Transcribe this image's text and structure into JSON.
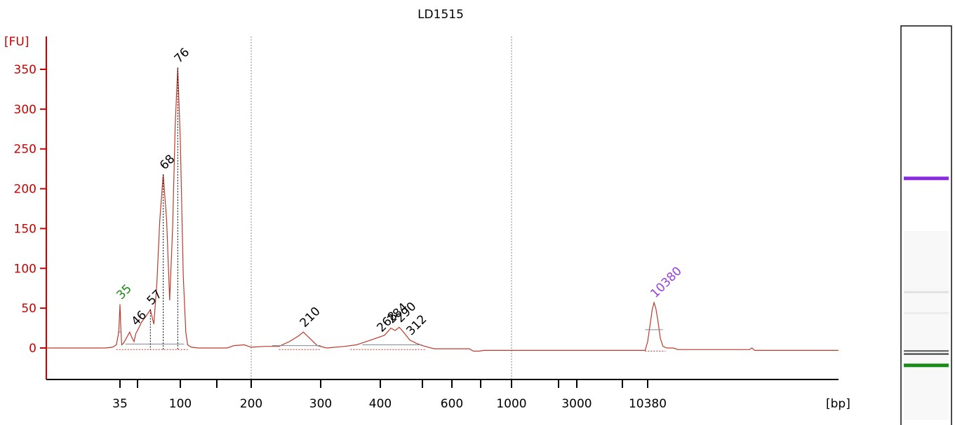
{
  "chart_data": {
    "type": "line",
    "title": "LD1515",
    "ylabel": "[FU]",
    "xlabel": "[bp]",
    "ylim": [
      -40,
      390
    ],
    "grid": "vertical dotted lines at 200 and 1000",
    "legend": "none",
    "y_ticks": [
      0,
      50,
      100,
      150,
      200,
      250,
      300,
      350
    ],
    "x_ticks": [
      {
        "label": "35",
        "xi": 3
      },
      {
        "label": "",
        "xi": 4
      },
      {
        "label": "100",
        "xi": 5
      },
      {
        "label": "",
        "xi": 6
      },
      {
        "label": "200",
        "xi": 7
      },
      {
        "label": "300",
        "xi": 8
      },
      {
        "label": "400",
        "xi": 9
      },
      {
        "label": "",
        "xi": 10
      },
      {
        "label": "600",
        "xi": 11
      },
      {
        "label": "",
        "xi": 12
      },
      {
        "label": "1000",
        "xi": 13
      },
      {
        "label": "",
        "xi": 14
      },
      {
        "label": "3000",
        "xi": 15
      },
      {
        "label": "",
        "xi": 16
      },
      {
        "label": "10380",
        "xi": 17
      }
    ],
    "trace": [
      [
        0,
        0
      ],
      [
        2.4,
        0
      ],
      [
        2.7,
        1
      ],
      [
        2.85,
        4
      ],
      [
        2.95,
        20
      ],
      [
        3.0,
        55
      ],
      [
        3.05,
        22
      ],
      [
        3.1,
        4
      ],
      [
        3.2,
        6
      ],
      [
        3.35,
        12
      ],
      [
        3.55,
        20
      ],
      [
        3.7,
        12
      ],
      [
        3.8,
        8
      ],
      [
        3.9,
        18
      ],
      [
        4.0,
        22
      ],
      [
        4.1,
        33
      ],
      [
        4.2,
        40
      ],
      [
        4.3,
        48
      ],
      [
        4.38,
        30
      ],
      [
        4.45,
        80
      ],
      [
        4.52,
        160
      ],
      [
        4.6,
        218
      ],
      [
        4.68,
        160
      ],
      [
        4.75,
        60
      ],
      [
        4.82,
        150
      ],
      [
        4.88,
        280
      ],
      [
        4.94,
        352
      ],
      [
        5.0,
        260
      ],
      [
        5.08,
        90
      ],
      [
        5.15,
        20
      ],
      [
        5.2,
        4
      ],
      [
        5.3,
        1
      ],
      [
        5.5,
        0
      ],
      [
        6.3,
        0
      ],
      [
        6.5,
        3
      ],
      [
        6.8,
        4
      ],
      [
        7.0,
        1
      ],
      [
        7.2,
        2
      ],
      [
        7.4,
        2
      ],
      [
        7.55,
        8
      ],
      [
        7.68,
        15
      ],
      [
        7.75,
        20
      ],
      [
        7.82,
        14
      ],
      [
        7.95,
        3
      ],
      [
        8.1,
        0
      ],
      [
        8.4,
        2
      ],
      [
        8.6,
        4
      ],
      [
        8.8,
        9
      ],
      [
        9.1,
        16
      ],
      [
        9.25,
        25
      ],
      [
        9.35,
        22
      ],
      [
        9.45,
        26
      ],
      [
        9.55,
        20
      ],
      [
        9.7,
        10
      ],
      [
        9.85,
        6
      ],
      [
        10.0,
        3
      ],
      [
        10.2,
        1
      ],
      [
        10.4,
        -1
      ],
      [
        11.6,
        -1
      ],
      [
        11.75,
        -4
      ],
      [
        11.95,
        -4
      ],
      [
        12.1,
        -3
      ],
      [
        15.0,
        -3
      ],
      [
        16.9,
        -3
      ],
      [
        17.0,
        8
      ],
      [
        17.1,
        30
      ],
      [
        17.18,
        48
      ],
      [
        17.25,
        57
      ],
      [
        17.32,
        50
      ],
      [
        17.4,
        35
      ],
      [
        17.5,
        12
      ],
      [
        17.6,
        2
      ],
      [
        17.75,
        0
      ],
      [
        18.0,
        0
      ],
      [
        18.2,
        -2
      ],
      [
        21.0,
        -2
      ],
      [
        21.1,
        0
      ],
      [
        21.2,
        -3
      ],
      [
        24.5,
        -3
      ]
    ],
    "peaks": [
      {
        "label": "35",
        "xi": 3.0,
        "y": 55,
        "color": "#158a15"
      },
      {
        "label": "46",
        "xi": 3.85,
        "y": 22
      },
      {
        "label": "57",
        "xi": 4.3,
        "y": 48
      },
      {
        "label": "68",
        "xi": 4.6,
        "y": 218
      },
      {
        "label": "76",
        "xi": 4.94,
        "y": 352
      },
      {
        "label": "210",
        "xi": 7.75,
        "y": 20
      },
      {
        "label": "268",
        "xi": 9.0,
        "y": 14
      },
      {
        "label": "284",
        "xi": 9.25,
        "y": 25
      },
      {
        "label": "290",
        "xi": 9.45,
        "y": 26
      },
      {
        "label": "312",
        "xi": 9.7,
        "y": 10
      },
      {
        "label": "10380",
        "xi": 17.25,
        "y": 57,
        "color": "#9a3ee0"
      }
    ],
    "gel_lane": {
      "bands": [
        {
          "pos": 0.395,
          "color": "#8a2be2",
          "weight": "heavy"
        },
        {
          "pos": 0.695,
          "color": "#e2e2e2",
          "weight": "faint"
        },
        {
          "pos": 0.75,
          "color": "#ececec",
          "weight": "faint"
        },
        {
          "pos": 0.85,
          "color": "#555555",
          "weight": "medium"
        },
        {
          "pos": 0.858,
          "color": "#333333",
          "weight": "medium"
        },
        {
          "pos": 0.885,
          "color": "#1a8a1a",
          "weight": "heavy"
        }
      ]
    },
    "colors": {
      "axis": "#cc0000",
      "trace": "#c0392b",
      "grid": "#888888",
      "text": "#000000"
    }
  }
}
